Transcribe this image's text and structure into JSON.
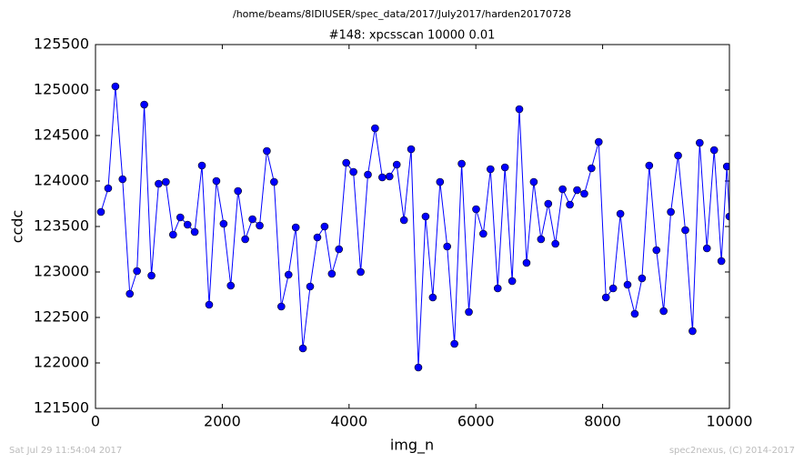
{
  "chart_data": {
    "type": "line",
    "suptitle": "/home/beams/8IDIUSER/spec_data/2017/July2017/harden20170728",
    "title": "#148: xpcsscan 10000 0.01",
    "xlabel": "img_n",
    "ylabel": "ccdc",
    "footer_left": "Sat Jul 29 11:54:04 2017",
    "footer_right": "spec2nexus, (C) 2014-2017",
    "x": [
      86,
      200,
      314,
      427,
      541,
      655,
      769,
      883,
      996,
      1110,
      1224,
      1338,
      1452,
      1565,
      1679,
      1793,
      1907,
      2021,
      2134,
      2248,
      2362,
      2476,
      2590,
      2703,
      2817,
      2931,
      3045,
      3159,
      3272,
      3386,
      3500,
      3614,
      3728,
      3841,
      3955,
      4069,
      4183,
      4297,
      4410,
      4524,
      4638,
      4752,
      4866,
      4979,
      5093,
      5207,
      5321,
      5435,
      5548,
      5662,
      5776,
      5890,
      6004,
      6117,
      6231,
      6345,
      6459,
      6573,
      6686,
      6800,
      6914,
      7028,
      7142,
      7255,
      7369,
      7483,
      7597,
      7711,
      7824,
      7938,
      8052,
      8166,
      8280,
      8393,
      8507,
      8621,
      8735,
      8849,
      8962,
      9076,
      9190,
      9304,
      9418,
      9531,
      9645,
      9759,
      9873,
      9960,
      10000
    ],
    "series": [
      {
        "color": "#0000ff",
        "values": [
          123660,
          123920,
          125040,
          124020,
          122760,
          123010,
          124840,
          122960,
          123970,
          123990,
          123410,
          123600,
          123520,
          123440,
          124170,
          122640,
          124000,
          123530,
          122850,
          123890,
          123360,
          123580,
          123510,
          124330,
          123990,
          122620,
          122970,
          123490,
          122160,
          122840,
          123380,
          123500,
          122980,
          123250,
          124200,
          124100,
          123000,
          124070,
          124580,
          124040,
          124050,
          124180,
          123570,
          124350,
          121950,
          123610,
          122720,
          123990,
          123280,
          122210,
          124190,
          122560,
          123690,
          123420,
          124130,
          122820,
          124150,
          122900,
          124790,
          123100,
          123990,
          123360,
          123750,
          123310,
          123910,
          123740,
          123900,
          123860,
          124140,
          124430,
          122720,
          122820,
          123640,
          122860,
          122540,
          122930,
          124170,
          123240,
          122570,
          123660,
          124280,
          123460,
          122350,
          124420,
          123260,
          124340,
          123120,
          124160,
          123610
        ]
      }
    ],
    "xlim": [
      0,
      10000
    ],
    "xticks": [
      0,
      2000,
      4000,
      6000,
      8000,
      10000
    ],
    "ylim": [
      121500,
      125500
    ],
    "yticks": [
      121500,
      122000,
      122500,
      123000,
      123500,
      124000,
      124500,
      125000,
      125500
    ]
  }
}
